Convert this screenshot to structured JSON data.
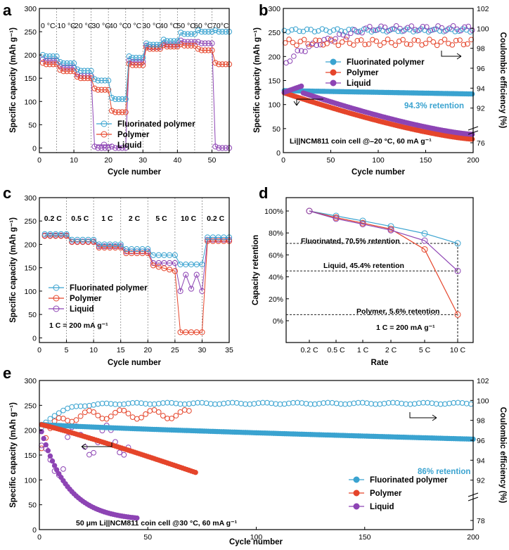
{
  "colors": {
    "fluorinated": "#3aa3d0",
    "polymer": "#e5452b",
    "liquid": "#8d44b4"
  },
  "legend_labels": {
    "fluorinated": "Fluorinated polymer",
    "polymer": "Polymer",
    "liquid": "Liquid"
  },
  "chart_data": [
    {
      "panel": "a",
      "type": "scatter",
      "xlabel": "Cycle number",
      "ylabel": "Specific capacity (mAh g⁻¹)",
      "xlim": [
        0,
        55
      ],
      "ylim": [
        -10,
        300
      ],
      "xticks": [
        0,
        10,
        20,
        30,
        40,
        50
      ],
      "yticks": [
        0,
        50,
        100,
        150,
        200,
        250,
        300
      ],
      "annotations": [
        "0 °C",
        "-10 °C",
        "-20 °C",
        "-30 °C",
        "-40 °C",
        "0 °C",
        "30 °C",
        "40 °C",
        "50 °C",
        "60 °C",
        "70°C"
      ],
      "segments": [
        {
          "cycles": [
            1,
            5
          ],
          "fluorinated": 197,
          "polymer": 180,
          "liquid": 188
        },
        {
          "cycles": [
            6,
            10
          ],
          "fluorinated": 182,
          "polymer": 165,
          "liquid": 173
        },
        {
          "cycles": [
            11,
            15
          ],
          "fluorinated": 166,
          "polymer": 150,
          "liquid": 155
        },
        {
          "cycles": [
            16,
            20
          ],
          "fluorinated": 145,
          "polymer": 125,
          "liquid": 0
        },
        {
          "cycles": [
            21,
            25
          ],
          "fluorinated": 105,
          "polymer": 77,
          "liquid": 0
        },
        {
          "cycles": [
            26,
            30
          ],
          "fluorinated": 194,
          "polymer": 178,
          "liquid": 185
        },
        {
          "cycles": [
            31,
            35
          ],
          "fluorinated": 222,
          "polymer": 213,
          "liquid": 217
        },
        {
          "cycles": [
            36,
            40
          ],
          "fluorinated": 230,
          "polymer": 218,
          "liquid": 222
        },
        {
          "cycles": [
            41,
            45
          ],
          "fluorinated": 245,
          "polymer": 220,
          "liquid": 228
        },
        {
          "cycles": [
            46,
            50
          ],
          "fluorinated": 250,
          "polymer": 210,
          "liquid": 225
        },
        {
          "cycles": [
            51,
            55
          ],
          "fluorinated": 250,
          "polymer": 180,
          "liquid": 0
        }
      ]
    },
    {
      "panel": "b",
      "type": "scatter",
      "xlabel": "Cycle number",
      "ylabel": "Specific capacity (mAh g⁻¹)",
      "y2label": "Coulombic efficiency (%)",
      "xlim": [
        0,
        200
      ],
      "ylim": [
        0,
        300
      ],
      "xticks": [
        0,
        50,
        100,
        150,
        200
      ],
      "yticks": [
        0,
        50,
        100,
        150,
        200,
        250,
        300
      ],
      "y2ticks": [
        76,
        92,
        94,
        96,
        98,
        100,
        102
      ],
      "capacity": {
        "fluorinated": [
          129,
          122
        ],
        "polymer": [
          125,
          28
        ],
        "liquid": [
          138,
          38
        ]
      },
      "ce": {
        "fluorinated": 99.8,
        "polymer": 98.6,
        "liquid_start": 96.0,
        "liquid_end": 100.0
      },
      "annotation": "Li||NCM811 coin cell @–20 °C, 60 mA g⁻¹",
      "retention": "94.3% retention"
    },
    {
      "panel": "c",
      "type": "scatter",
      "xlabel": "Cycle number",
      "ylabel": "Specific capacity (mAh g⁻¹)",
      "xlim": [
        0,
        35
      ],
      "ylim": [
        -10,
        300
      ],
      "xticks": [
        0,
        5,
        10,
        15,
        20,
        25,
        30,
        35
      ],
      "yticks": [
        0,
        50,
        100,
        150,
        200,
        250,
        300
      ],
      "rates": [
        "0.2 C",
        "0.5 C",
        "1 C",
        "2 C",
        "5 C",
        "10 C",
        "0.2 C"
      ],
      "segments": [
        {
          "cycles": [
            1,
            5
          ],
          "fluorinated": 222,
          "polymer": 218,
          "liquid": 219
        },
        {
          "cycles": [
            6,
            10
          ],
          "fluorinated": 210,
          "polymer": 205,
          "liquid": 206
        },
        {
          "cycles": [
            11,
            15
          ],
          "fluorinated": 200,
          "polymer": 193,
          "liquid": 196
        },
        {
          "cycles": [
            16,
            20
          ],
          "fluorinated": 190,
          "polymer": 181,
          "liquid": 185
        },
        {
          "cycles": [
            21,
            25
          ],
          "fluorinated": 177,
          "polymer": 150,
          "liquid": 160
        },
        {
          "cycles": [
            26,
            30
          ],
          "fluorinated": 157,
          "polymer": 12,
          "liquid": 125
        },
        {
          "cycles": [
            31,
            35
          ],
          "fluorinated": 215,
          "polymer": 207,
          "liquid": 210
        }
      ],
      "annotation": "1 C = 200 mA g⁻¹"
    },
    {
      "panel": "d",
      "type": "line",
      "xlabel": "Rate",
      "ylabel": "Capacity retention",
      "categories": [
        "0.2 C",
        "0.5 C",
        "1 C",
        "2 C",
        "5 C",
        "10 C"
      ],
      "ylim": [
        -0.1,
        1.08
      ],
      "yticks": [
        "0%",
        "20%",
        "40%",
        "60%",
        "80%",
        "100%"
      ],
      "series": [
        {
          "name": "Fluorinated",
          "values": [
            100,
            95.5,
            91,
            86,
            79.5,
            70.5
          ]
        },
        {
          "name": "Polymer",
          "values": [
            100,
            94,
            89,
            83.5,
            65,
            5.6
          ]
        },
        {
          "name": "Liquid",
          "values": [
            100,
            93,
            88,
            82.5,
            73,
            45.4
          ]
        }
      ],
      "labels": [
        "Fluorinated, 70.5% retention",
        "Liquid, 45.4% retention",
        "Polymer, 5.6% retention"
      ],
      "annotation": "1 C = 200 mA g⁻¹"
    },
    {
      "panel": "e",
      "type": "scatter",
      "xlabel": "Cycle number",
      "ylabel": "Specific capacity (mAh g⁻¹)",
      "y2label": "Coulombic efficiency (%)",
      "xlim": [
        0,
        200
      ],
      "ylim": [
        0,
        300
      ],
      "xticks": [
        0,
        50,
        100,
        150,
        200
      ],
      "yticks": [
        0,
        50,
        100,
        150,
        200,
        250,
        300
      ],
      "y2ticks": [
        78,
        92,
        94,
        96,
        98,
        100,
        102
      ],
      "capacity": {
        "fluorinated": [
          212,
          182
        ],
        "polymer": [
          212,
          115
        ],
        "liquid": [
          212,
          18
        ]
      },
      "cycles": {
        "fluorinated": 200,
        "polymer": 72,
        "liquid": 45
      },
      "annotation": "50 μm Li||NCM811 coin cell @30 °C, 60 mA g⁻¹",
      "retention": "86% retention"
    }
  ]
}
